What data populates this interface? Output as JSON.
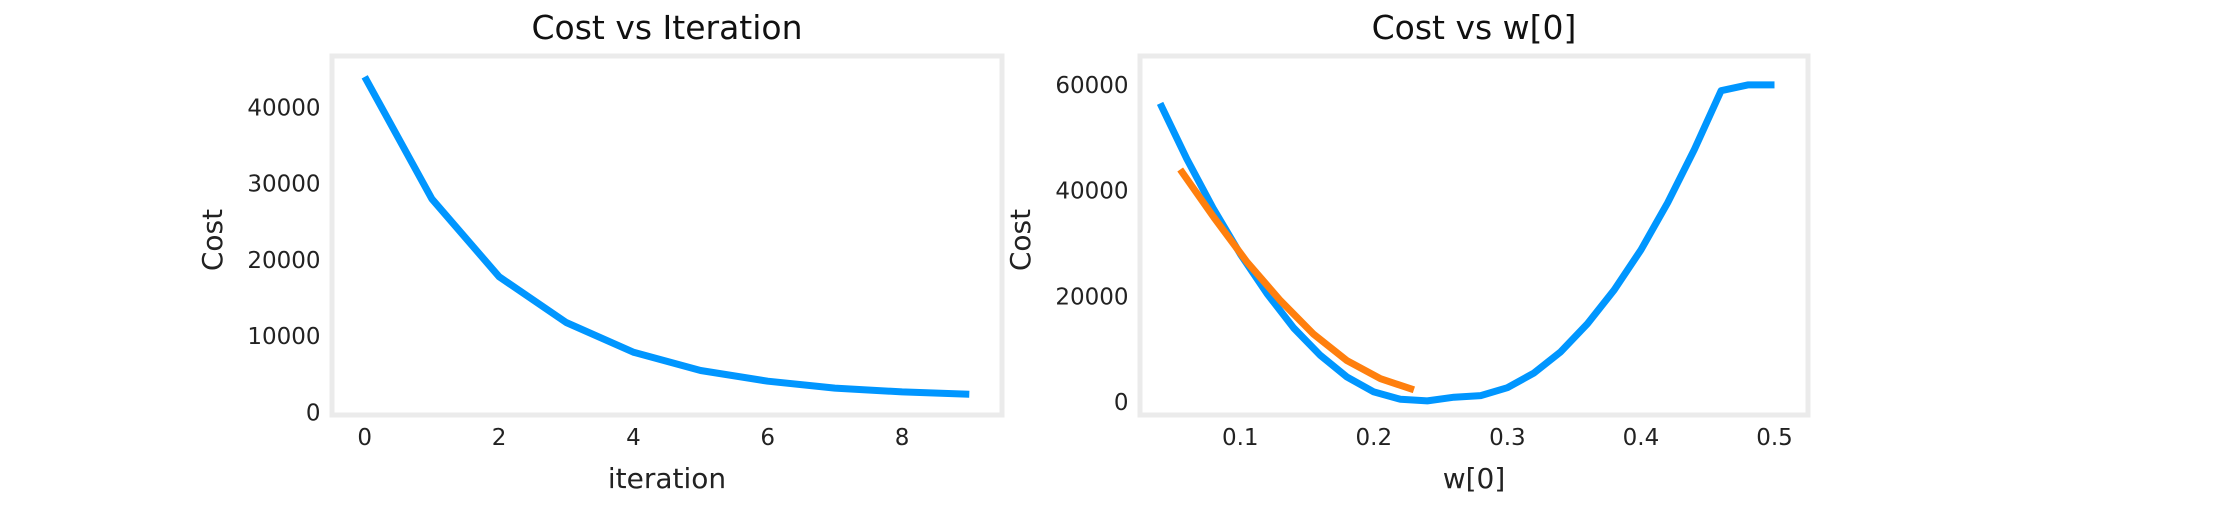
{
  "chart_data": [
    {
      "type": "line",
      "title": "Cost vs Iteration",
      "xlabel": "iteration",
      "ylabel": "Cost",
      "xlim": [
        -0.45,
        9.45
      ],
      "ylim": [
        0,
        46400
      ],
      "xticks": [
        0,
        2,
        4,
        6,
        8
      ],
      "xtick_labels": [
        "0",
        "2",
        "4",
        "6",
        "8"
      ],
      "yticks": [
        0,
        10000,
        20000,
        30000,
        40000
      ],
      "ytick_labels": [
        "0",
        "10000",
        "20000",
        "30000",
        "40000"
      ],
      "grid": false,
      "series": [
        {
          "color": "#0096ff",
          "x": [
            0,
            1,
            2,
            3,
            4,
            5,
            6,
            7,
            8,
            9
          ],
          "y": [
            44000,
            28000,
            17800,
            11800,
            7900,
            5500,
            4100,
            3200,
            2700,
            2400
          ]
        }
      ]
    },
    {
      "type": "line",
      "title": "Cost vs w[0]",
      "xlabel": "w[0]",
      "ylabel": "Cost",
      "xlim": [
        0.0268,
        0.5232
      ],
      "ylim": [
        -2000,
        65000
      ],
      "xticks": [
        0.1,
        0.2,
        0.3,
        0.4,
        0.5
      ],
      "xtick_labels": [
        "0.1",
        "0.2",
        "0.3",
        "0.4",
        "0.5"
      ],
      "yticks": [
        0,
        20000,
        40000,
        60000
      ],
      "ytick_labels": [
        "0",
        "20000",
        "40000",
        "60000"
      ],
      "grid": false,
      "series": [
        {
          "color": "#0096ff",
          "x": [
            0.04,
            0.06,
            0.08,
            0.1,
            0.12,
            0.14,
            0.16,
            0.18,
            0.2,
            0.22,
            0.24,
            0.26,
            0.28,
            0.3,
            0.32,
            0.34,
            0.36,
            0.38,
            0.4,
            0.42,
            0.44,
            0.46,
            0.48,
            0.5
          ],
          "y": [
            56500,
            46000,
            36500,
            28000,
            20500,
            14000,
            8800,
            4700,
            1900,
            500,
            200,
            900,
            1200,
            2700,
            5500,
            9500,
            14800,
            21200,
            28800,
            37700,
            47800,
            58900,
            60000,
            60000
          ]
        },
        {
          "color": "#ff7f0e",
          "x": [
            0.055,
            0.08,
            0.105,
            0.13,
            0.155,
            0.18,
            0.205,
            0.23
          ],
          "y": [
            44000,
            35000,
            26500,
            19200,
            12800,
            7800,
            4400,
            2300
          ]
        }
      ]
    }
  ]
}
